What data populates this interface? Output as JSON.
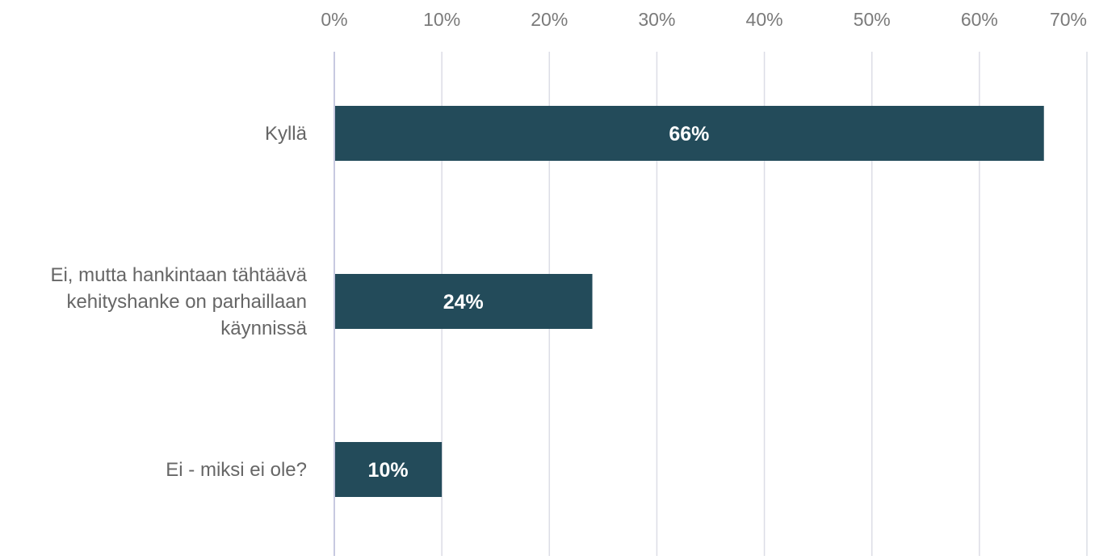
{
  "chart_data": {
    "type": "bar",
    "orientation": "horizontal",
    "categories": [
      [
        "Kyllä"
      ],
      [
        "Ei, mutta hankintaan tähtäävä",
        "kehityshanke on parhaillaan",
        "käynnissä"
      ],
      [
        "Ei - miksi ei ole?"
      ]
    ],
    "values": [
      66,
      24,
      10
    ],
    "data_labels": [
      "66%",
      "24%",
      "10%"
    ],
    "xlim": [
      0,
      70
    ],
    "xticks": [
      0,
      10,
      20,
      30,
      40,
      50,
      60,
      70
    ],
    "xtick_labels": [
      "0%",
      "10%",
      "20%",
      "30%",
      "40%",
      "50%",
      "60%",
      "70%"
    ],
    "x_axis_position": "top",
    "grid": true,
    "colors": {
      "bar": "#234b5a",
      "grid": "#dcdde6",
      "axis": "#c7c9e0",
      "tick_text": "#7a7a7a",
      "category_text": "#666666",
      "data_label": "#ffffff"
    }
  }
}
